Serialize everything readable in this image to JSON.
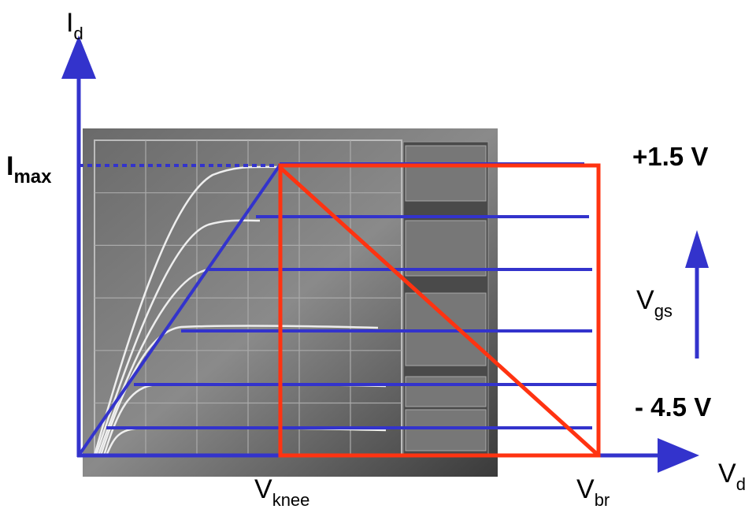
{
  "axes": {
    "y": {
      "symbol": "I",
      "subscript": "d"
    },
    "x": {
      "symbol": "V",
      "subscript": "d"
    }
  },
  "labels": {
    "imax": {
      "symbol": "I",
      "subscript": "max"
    },
    "vgs_top": "+1.5 V",
    "vgs_bottom": "- 4.5 V",
    "vgs": {
      "symbol": "V",
      "subscript": "gs"
    },
    "vknee": {
      "symbol": "V",
      "subscript": "knee"
    },
    "vbr": {
      "symbol": "V",
      "subscript": "br"
    }
  }
}
